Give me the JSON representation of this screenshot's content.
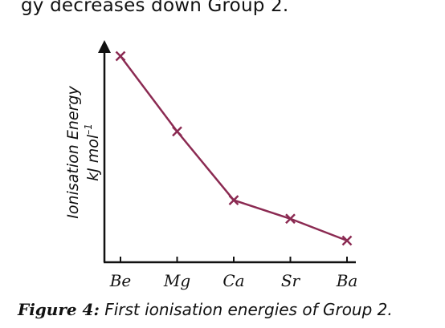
{
  "header_text": "gy decreases down Group 2.",
  "caption": {
    "lead": "Figure 4:",
    "body": "First ionisation energies of Group 2."
  },
  "chart_data": {
    "type": "line",
    "categories": [
      "Be",
      "Mg",
      "Ca",
      "Sr",
      "Ba"
    ],
    "values": [
      900,
      738,
      590,
      550,
      503
    ],
    "ylabel": "Ionisation Energy",
    "yunit": "kJ mol",
    "yunit_sup": "–1",
    "ylim": [
      380,
      950
    ],
    "marker": "x",
    "grid": false,
    "line_color": "#8b2a52"
  }
}
